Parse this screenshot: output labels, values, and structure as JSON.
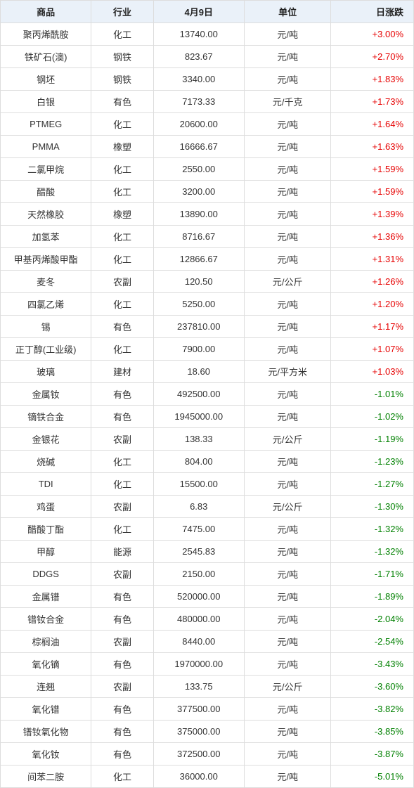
{
  "table": {
    "columns": [
      "商品",
      "行业",
      "4月9日",
      "单位",
      "日涨跌"
    ],
    "col_classes": [
      "col-product",
      "col-industry",
      "col-price",
      "col-unit",
      "col-change"
    ],
    "header_bg": "#eaf1f9",
    "border_color": "#dddddd",
    "pos_color": "#e60000",
    "neg_color": "#008000",
    "rows": [
      {
        "product": "聚丙烯酰胺",
        "industry": "化工",
        "price": "13740.00",
        "unit": "元/吨",
        "change": "+3.00%",
        "dir": "pos"
      },
      {
        "product": "铁矿石(澳)",
        "industry": "钢铁",
        "price": "823.67",
        "unit": "元/吨",
        "change": "+2.70%",
        "dir": "pos"
      },
      {
        "product": "钢坯",
        "industry": "钢铁",
        "price": "3340.00",
        "unit": "元/吨",
        "change": "+1.83%",
        "dir": "pos"
      },
      {
        "product": "白银",
        "industry": "有色",
        "price": "7173.33",
        "unit": "元/千克",
        "change": "+1.73%",
        "dir": "pos"
      },
      {
        "product": "PTMEG",
        "industry": "化工",
        "price": "20600.00",
        "unit": "元/吨",
        "change": "+1.64%",
        "dir": "pos"
      },
      {
        "product": "PMMA",
        "industry": "橡塑",
        "price": "16666.67",
        "unit": "元/吨",
        "change": "+1.63%",
        "dir": "pos"
      },
      {
        "product": "二氯甲烷",
        "industry": "化工",
        "price": "2550.00",
        "unit": "元/吨",
        "change": "+1.59%",
        "dir": "pos"
      },
      {
        "product": "醋酸",
        "industry": "化工",
        "price": "3200.00",
        "unit": "元/吨",
        "change": "+1.59%",
        "dir": "pos"
      },
      {
        "product": "天然橡胶",
        "industry": "橡塑",
        "price": "13890.00",
        "unit": "元/吨",
        "change": "+1.39%",
        "dir": "pos"
      },
      {
        "product": "加氢苯",
        "industry": "化工",
        "price": "8716.67",
        "unit": "元/吨",
        "change": "+1.36%",
        "dir": "pos"
      },
      {
        "product": "甲基丙烯酸甲酯",
        "industry": "化工",
        "price": "12866.67",
        "unit": "元/吨",
        "change": "+1.31%",
        "dir": "pos"
      },
      {
        "product": "麦冬",
        "industry": "农副",
        "price": "120.50",
        "unit": "元/公斤",
        "change": "+1.26%",
        "dir": "pos"
      },
      {
        "product": "四氯乙烯",
        "industry": "化工",
        "price": "5250.00",
        "unit": "元/吨",
        "change": "+1.20%",
        "dir": "pos"
      },
      {
        "product": "锡",
        "industry": "有色",
        "price": "237810.00",
        "unit": "元/吨",
        "change": "+1.17%",
        "dir": "pos"
      },
      {
        "product": "正丁醇(工业级)",
        "industry": "化工",
        "price": "7900.00",
        "unit": "元/吨",
        "change": "+1.07%",
        "dir": "pos"
      },
      {
        "product": "玻璃",
        "industry": "建材",
        "price": "18.60",
        "unit": "元/平方米",
        "change": "+1.03%",
        "dir": "pos"
      },
      {
        "product": "金属钕",
        "industry": "有色",
        "price": "492500.00",
        "unit": "元/吨",
        "change": "-1.01%",
        "dir": "neg"
      },
      {
        "product": "镝铁合金",
        "industry": "有色",
        "price": "1945000.00",
        "unit": "元/吨",
        "change": "-1.02%",
        "dir": "neg"
      },
      {
        "product": "金银花",
        "industry": "农副",
        "price": "138.33",
        "unit": "元/公斤",
        "change": "-1.19%",
        "dir": "neg"
      },
      {
        "product": "烧碱",
        "industry": "化工",
        "price": "804.00",
        "unit": "元/吨",
        "change": "-1.23%",
        "dir": "neg"
      },
      {
        "product": "TDI",
        "industry": "化工",
        "price": "15500.00",
        "unit": "元/吨",
        "change": "-1.27%",
        "dir": "neg"
      },
      {
        "product": "鸡蛋",
        "industry": "农副",
        "price": "6.83",
        "unit": "元/公斤",
        "change": "-1.30%",
        "dir": "neg"
      },
      {
        "product": "醋酸丁酯",
        "industry": "化工",
        "price": "7475.00",
        "unit": "元/吨",
        "change": "-1.32%",
        "dir": "neg"
      },
      {
        "product": "甲醇",
        "industry": "能源",
        "price": "2545.83",
        "unit": "元/吨",
        "change": "-1.32%",
        "dir": "neg"
      },
      {
        "product": "DDGS",
        "industry": "农副",
        "price": "2150.00",
        "unit": "元/吨",
        "change": "-1.71%",
        "dir": "neg"
      },
      {
        "product": "金属镨",
        "industry": "有色",
        "price": "520000.00",
        "unit": "元/吨",
        "change": "-1.89%",
        "dir": "neg"
      },
      {
        "product": "镨钕合金",
        "industry": "有色",
        "price": "480000.00",
        "unit": "元/吨",
        "change": "-2.04%",
        "dir": "neg"
      },
      {
        "product": "棕榈油",
        "industry": "农副",
        "price": "8440.00",
        "unit": "元/吨",
        "change": "-2.54%",
        "dir": "neg"
      },
      {
        "product": "氧化镝",
        "industry": "有色",
        "price": "1970000.00",
        "unit": "元/吨",
        "change": "-3.43%",
        "dir": "neg"
      },
      {
        "product": "连翘",
        "industry": "农副",
        "price": "133.75",
        "unit": "元/公斤",
        "change": "-3.60%",
        "dir": "neg"
      },
      {
        "product": "氧化镨",
        "industry": "有色",
        "price": "377500.00",
        "unit": "元/吨",
        "change": "-3.82%",
        "dir": "neg"
      },
      {
        "product": "镨钕氧化物",
        "industry": "有色",
        "price": "375000.00",
        "unit": "元/吨",
        "change": "-3.85%",
        "dir": "neg"
      },
      {
        "product": "氧化钕",
        "industry": "有色",
        "price": "372500.00",
        "unit": "元/吨",
        "change": "-3.87%",
        "dir": "neg"
      },
      {
        "product": "间苯二胺",
        "industry": "化工",
        "price": "36000.00",
        "unit": "元/吨",
        "change": "-5.01%",
        "dir": "neg"
      }
    ]
  }
}
